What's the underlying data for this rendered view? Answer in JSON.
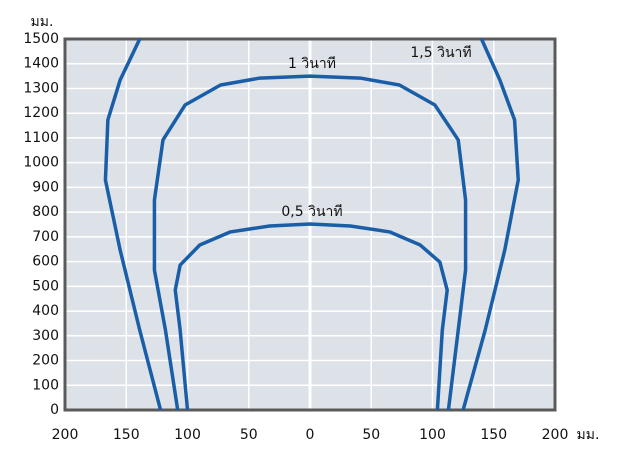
{
  "chart_data": {
    "type": "line",
    "y_unit": "มม.",
    "x_unit": "มม.",
    "xlim": [
      -200,
      200
    ],
    "xticks": [
      {
        "value": -200,
        "label": "200"
      },
      {
        "value": -150,
        "label": "150"
      },
      {
        "value": -100,
        "label": "100"
      },
      {
        "value": -50,
        "label": "50"
      },
      0,
      50,
      100,
      150,
      200
    ],
    "ylim": [
      0,
      1500
    ],
    "yticks": [
      0,
      100,
      200,
      300,
      400,
      500,
      600,
      700,
      800,
      900,
      1000,
      1100,
      1200,
      1300,
      1400,
      1500
    ],
    "grid": true,
    "series": [
      {
        "name": "0,5 วินาที",
        "color": "#1a5ea8",
        "x": [
          -100,
          -106,
          -110,
          -106,
          -90,
          -65,
          -33,
          0,
          33,
          65,
          90,
          106,
          112,
          108,
          104
        ],
        "y": [
          0,
          323,
          485,
          586,
          667,
          720,
          744,
          752,
          744,
          720,
          667,
          598,
          485,
          323,
          0
        ]
      },
      {
        "name": "1 วินาที",
        "color": "#1a5ea8",
        "x": [
          -108,
          -118,
          -127,
          -127,
          -120,
          -102,
          -73,
          -41,
          0,
          41,
          73,
          102,
          121,
          127,
          127,
          121,
          113
        ],
        "y": [
          0,
          323,
          566,
          849,
          1092,
          1233,
          1314,
          1342,
          1350,
          1342,
          1314,
          1233,
          1092,
          849,
          566,
          323,
          0
        ]
      },
      {
        "name": "1,5 วินาที",
        "color": "#1a5ea8",
        "x": [
          -122,
          -139,
          -155,
          -167,
          -165,
          -155,
          -139,
          null,
          140,
          155,
          167,
          170,
          159,
          143,
          125
        ],
        "y": [
          0,
          323,
          647,
          930,
          1173,
          1334,
          1500,
          null,
          1500,
          1334,
          1173,
          930,
          647,
          323,
          0
        ]
      }
    ]
  }
}
